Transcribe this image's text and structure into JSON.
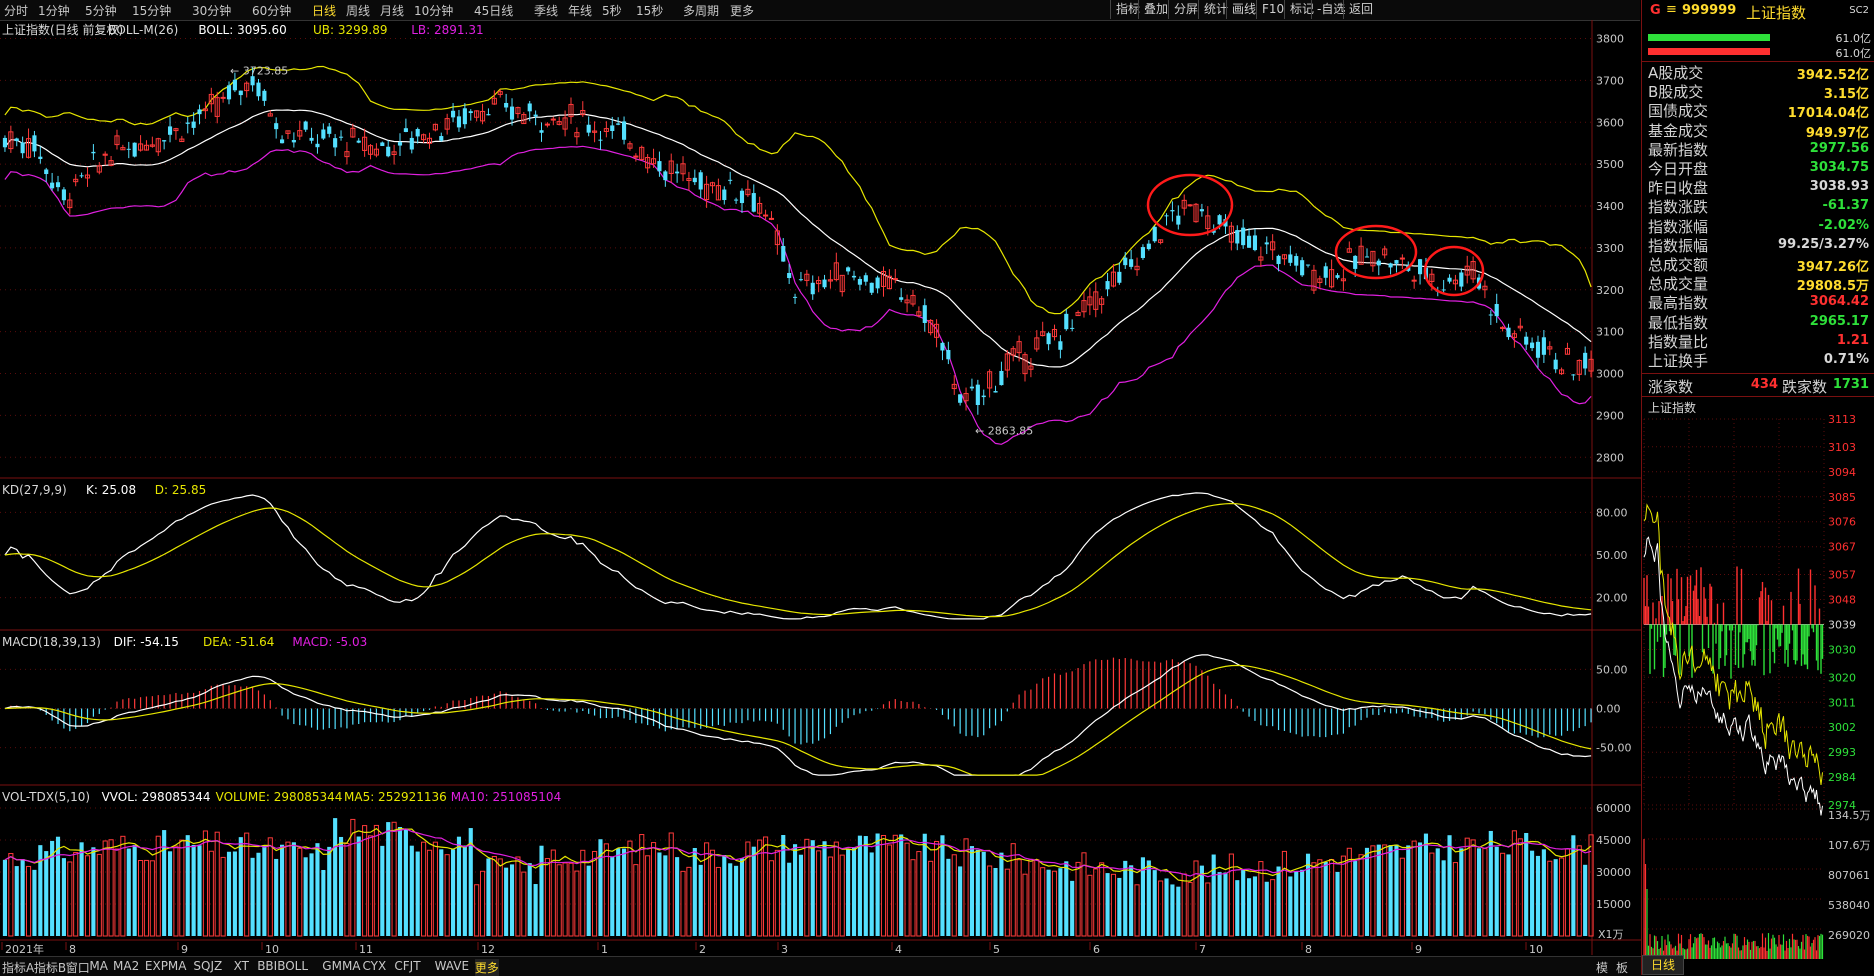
{
  "toolbar": {
    "periods": [
      "分时",
      "1分钟",
      "5分钟",
      "15分钟",
      "30分钟",
      "60分钟",
      "日线",
      "周线",
      "月线",
      "10分钟",
      "45日线",
      "季线",
      "年线",
      "5秒",
      "15秒",
      "多周期",
      "更多"
    ],
    "active_period": "日线",
    "right_buttons": [
      "指标",
      "叠加",
      "分屏",
      "统计",
      "画线",
      "F10",
      "标记",
      "-自选",
      "返回"
    ]
  },
  "main_panel": {
    "title": "上证指数(日线 前复权)",
    "indicator": "BOLL-M(26)",
    "boll": "BOLL: 3095.60",
    "ub": "UB: 3299.89",
    "lb": "LB: 2891.31",
    "high_mark": "3723.85",
    "low_mark": "2863.85",
    "y_ticks": [
      "3800",
      "3700",
      "3600",
      "3500",
      "3400",
      "3300",
      "3200",
      "3100",
      "3000",
      "2900",
      "2800"
    ]
  },
  "kd_panel": {
    "name": "KD(27,9,9)",
    "k": "K: 25.08",
    "d": "D: 25.85",
    "y_ticks": [
      "80.00",
      "50.00",
      "20.00"
    ]
  },
  "macd_panel": {
    "name": "MACD(18,39,13)",
    "dif": "DIF: -54.15",
    "dea": "DEA: -51.64",
    "macd": "MACD: -5.03",
    "y_ticks": [
      "50.00",
      "0.00",
      "-50.00"
    ]
  },
  "vol_panel": {
    "name": "VOL-TDX(5,10)",
    "vvol": "VVOL: 298085344",
    "volume": "VOLUME: 298085344",
    "ma5": "MA5: 252921136",
    "ma10": "MA10: 251085104",
    "y_ticks": [
      "60000",
      "45000",
      "30000",
      "15000"
    ],
    "unit": "X1万"
  },
  "x_axis": {
    "labels": [
      "2021年",
      "8",
      "9",
      "10",
      "11",
      "12",
      "1",
      "2",
      "3",
      "4",
      "5",
      "6",
      "7",
      "8",
      "9",
      "10"
    ]
  },
  "bottom_tabs": {
    "tabs": [
      "指标A",
      "指标B",
      "窗口",
      "MA",
      "MA2",
      "EXPMA",
      "SQJZ",
      "XT",
      "BBIBOLL",
      "GMMA",
      "CYX",
      "CFJT",
      "WAVE",
      "更多"
    ],
    "active": "更多",
    "right": [
      "模",
      "板"
    ]
  },
  "right_panel": {
    "header": {
      "marker": "G",
      "menu": "≡",
      "code": "999999",
      "name": "上证指数",
      "badge": "SC2"
    },
    "bars": [
      "61.0亿",
      "61.0亿"
    ],
    "stats": [
      {
        "label": "A股成交",
        "value": "3942.52亿",
        "color": "#ffdc2e"
      },
      {
        "label": "B股成交",
        "value": "3.15亿",
        "color": "#ffdc2e"
      },
      {
        "label": "国债成交",
        "value": "17014.04亿",
        "color": "#ffdc2e"
      },
      {
        "label": "基金成交",
        "value": "949.97亿",
        "color": "#ffdc2e"
      },
      {
        "label": "最新指数",
        "value": "2977.56",
        "color": "#2ee03a"
      },
      {
        "label": "今日开盘",
        "value": "3034.75",
        "color": "#2ee03a"
      },
      {
        "label": "昨日收盘",
        "value": "3038.93",
        "color": "#d8d8d8"
      },
      {
        "label": "指数涨跌",
        "value": "-61.37",
        "color": "#2ee03a"
      },
      {
        "label": "指数涨幅",
        "value": "-2.02%",
        "color": "#2ee03a"
      },
      {
        "label": "指数振幅",
        "value": "99.25/3.27%",
        "color": "#d8d8d8"
      },
      {
        "label": "总成交额",
        "value": "3947.26亿",
        "color": "#ffdc2e"
      },
      {
        "label": "总成交量",
        "value": "29808.5万",
        "color": "#ffdc2e"
      },
      {
        "label": "最高指数",
        "value": "3064.42",
        "color": "#ff3030"
      },
      {
        "label": "最低指数",
        "value": "2965.17",
        "color": "#2ee03a"
      },
      {
        "label": "指数量比",
        "value": "1.21",
        "color": "#ff3030"
      },
      {
        "label": "上证换手",
        "value": "0.71%",
        "color": "#d8d8d8"
      }
    ],
    "advance_label": "涨家数",
    "advance_value": "434",
    "decline_label": "跌家数",
    "decline_value": "1731",
    "intraday_title": "上证指数",
    "intraday_ticks": [
      "3113",
      "3103",
      "3094",
      "3085",
      "3076",
      "3067",
      "3057",
      "3048",
      "3039",
      "3030",
      "3020",
      "3011",
      "3002",
      "2993",
      "2984",
      "2974"
    ],
    "vol_ticks": [
      "134.5万",
      "107.6万",
      "807061",
      "538040",
      "269020"
    ],
    "period_tab": "日线"
  },
  "colors": {
    "up": "#ff3a3a",
    "down": "#54e0ff",
    "boll_mid": "#ffffff",
    "boll_ub": "#e6e600",
    "boll_lb": "#e020e0",
    "grid": "#5a0c0c",
    "annotation": "#ff1a1a"
  }
}
